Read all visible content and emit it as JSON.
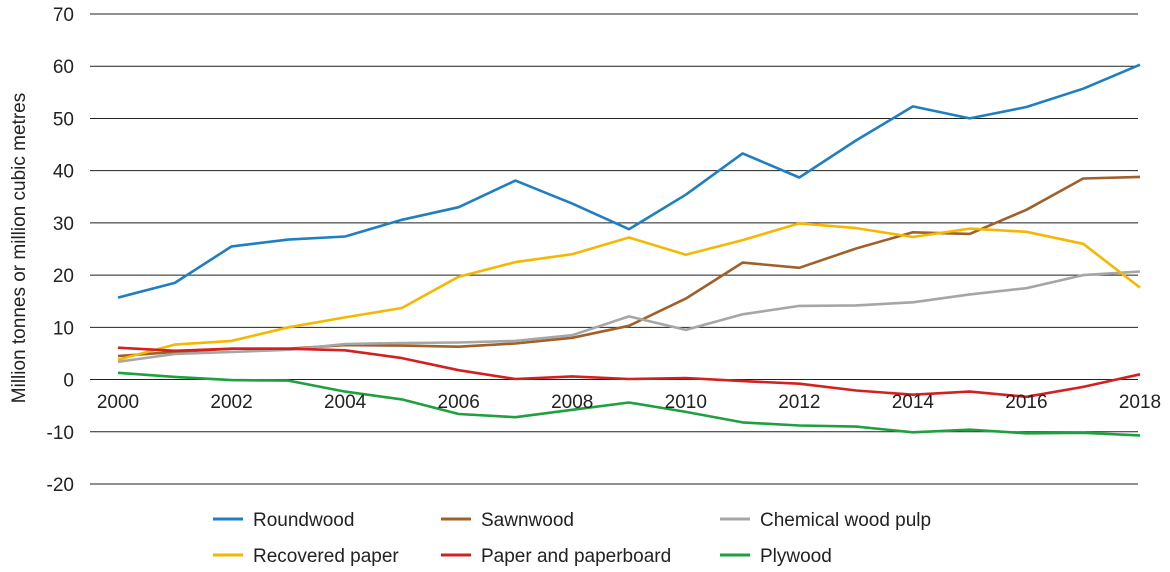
{
  "chart_data": {
    "type": "line",
    "title": "",
    "xlabel": "",
    "ylabel": "Million tonnes or million cubic metres",
    "ylim": [
      -20,
      70
    ],
    "yticks": [
      70,
      60,
      50,
      40,
      30,
      20,
      10,
      0,
      -10,
      -20
    ],
    "ytick_labels": [
      "70",
      "60",
      "50",
      "40",
      "30",
      "20",
      "10",
      "0",
      "-10",
      "-20"
    ],
    "xlim": [
      2000,
      2018
    ],
    "xticks": [
      2000,
      2002,
      2004,
      2006,
      2008,
      2010,
      2012,
      2014,
      2016,
      2018
    ],
    "xtick_labels": [
      "2000",
      "2002",
      "2004",
      "2006",
      "2008",
      "2010",
      "2012",
      "2014",
      "2016",
      "2018"
    ],
    "grid": "horizontal",
    "legend_position": "bottom",
    "x": [
      2000,
      2001,
      2002,
      2003,
      2004,
      2005,
      2006,
      2007,
      2008,
      2009,
      2010,
      2011,
      2012,
      2013,
      2014,
      2015,
      2016,
      2017,
      2018
    ],
    "series": [
      {
        "name": "Roundwood",
        "color": "#1f7fc0",
        "values": [
          15.7,
          18.5,
          25.5,
          26.8,
          27.4,
          30.6,
          33.0,
          38.1,
          33.7,
          28.8,
          35.4,
          43.3,
          38.7,
          45.8,
          52.3,
          50.0,
          52.2,
          55.7,
          60.3
        ]
      },
      {
        "name": "Sawnwood",
        "color": "#a0602a",
        "values": [
          4.5,
          5.3,
          5.9,
          5.9,
          6.6,
          6.5,
          6.3,
          6.9,
          8.0,
          10.3,
          15.5,
          22.4,
          21.4,
          25.1,
          28.2,
          27.9,
          32.5,
          38.5,
          38.8
        ]
      },
      {
        "name": "Chemical wood pulp",
        "color": "#a6a6a6",
        "values": [
          3.4,
          4.9,
          5.3,
          5.7,
          6.8,
          7.0,
          7.1,
          7.4,
          8.5,
          12.1,
          9.5,
          12.5,
          14.1,
          14.2,
          14.8,
          16.3,
          17.5,
          20.0,
          20.7
        ]
      },
      {
        "name": "Recovered paper",
        "color": "#f5b800",
        "values": [
          3.8,
          6.7,
          7.4,
          10.0,
          11.9,
          13.7,
          19.7,
          22.5,
          24.0,
          27.2,
          23.9,
          26.7,
          29.9,
          29.0,
          27.3,
          28.9,
          28.3,
          26.0,
          17.6
        ]
      },
      {
        "name": "Paper and paperboard",
        "color": "#d42020",
        "values": [
          6.1,
          5.5,
          5.9,
          5.9,
          5.6,
          4.1,
          1.8,
          0.1,
          0.6,
          0.1,
          0.3,
          -0.3,
          -0.8,
          -2.1,
          -2.9,
          -2.3,
          -3.3,
          -1.4,
          1.0
        ]
      },
      {
        "name": "Plywood",
        "color": "#1fa040",
        "values": [
          1.3,
          0.5,
          -0.1,
          -0.2,
          -2.3,
          -3.8,
          -6.6,
          -7.2,
          -5.8,
          -4.4,
          -6.2,
          -8.2,
          -8.8,
          -9.0,
          -10.1,
          -9.6,
          -10.3,
          -10.2,
          -10.7
        ]
      }
    ]
  }
}
